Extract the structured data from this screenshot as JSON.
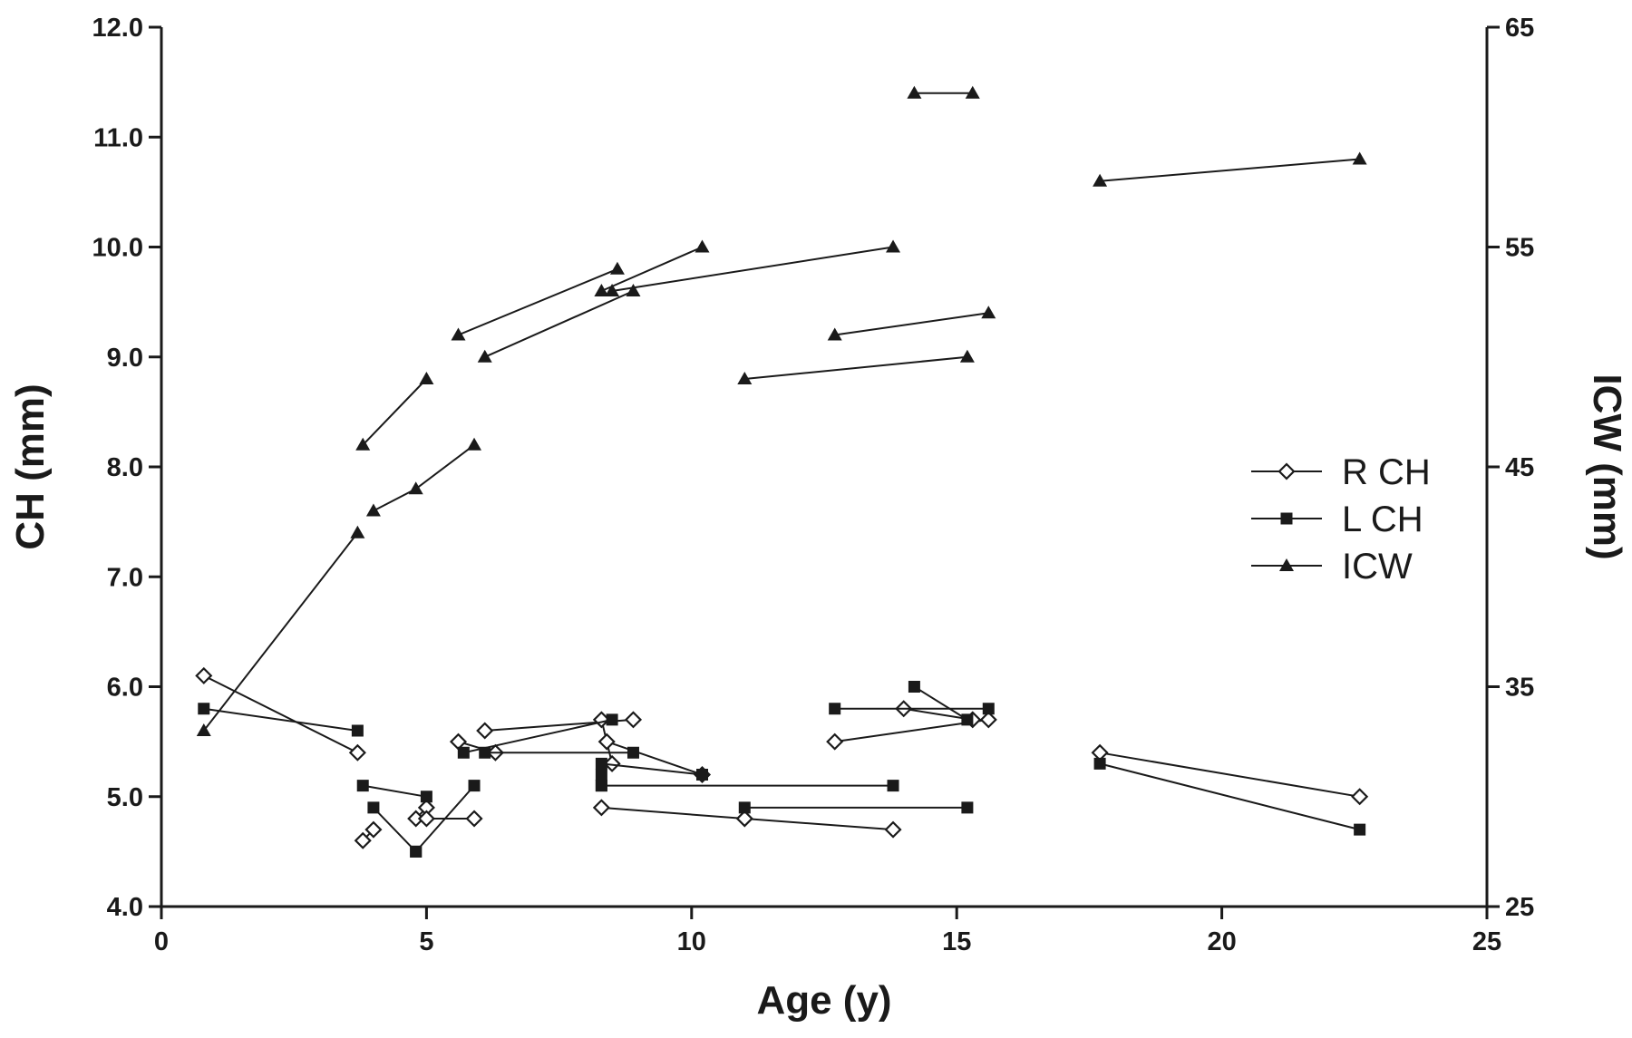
{
  "chart_data": {
    "type": "line",
    "title": "",
    "xlabel": "Age (y)",
    "ylabel": "CH (mm)",
    "y2label": "ICW (mm)",
    "xlim": [
      0,
      25
    ],
    "ylim": [
      4.0,
      12.0
    ],
    "y2lim": [
      25,
      65
    ],
    "xticks": [
      "0",
      "5",
      "10",
      "15",
      "20",
      "25"
    ],
    "yticks": [
      "4.0",
      "5.0",
      "6.0",
      "7.0",
      "8.0",
      "9.0",
      "10.0",
      "11.0",
      "12.0"
    ],
    "y2ticks": [
      "25",
      "35",
      "45",
      "55",
      "65"
    ],
    "grid": false,
    "legend_position": "right",
    "colors": {
      "line": "#1a1a1a",
      "background": "#ffffff"
    },
    "legend": [
      {
        "key": "rch",
        "label": "R CH",
        "marker": "open-diamond"
      },
      {
        "key": "lch",
        "label": "L CH",
        "marker": "filled-square"
      },
      {
        "key": "icw",
        "label": "ICW",
        "marker": "filled-triangle"
      }
    ],
    "series": [
      {
        "name": "R CH",
        "axis": "left",
        "marker": "open-diamond",
        "segments": [
          [
            [
              0.8,
              6.1
            ],
            [
              3.7,
              5.4
            ]
          ],
          [
            [
              3.8,
              4.6
            ],
            [
              4.0,
              4.7
            ]
          ],
          [
            [
              4.8,
              4.8
            ],
            [
              5.0,
              4.9
            ]
          ],
          [
            [
              5.0,
              4.8
            ],
            [
              5.9,
              4.8
            ]
          ],
          [
            [
              5.6,
              5.5
            ],
            [
              6.3,
              5.4
            ]
          ],
          [
            [
              6.1,
              5.6
            ],
            [
              8.9,
              5.7
            ]
          ],
          [
            [
              8.3,
              5.7
            ],
            [
              8.5,
              5.3
            ]
          ],
          [
            [
              8.4,
              5.5
            ],
            [
              10.2,
              5.2
            ]
          ],
          [
            [
              8.3,
              4.9
            ],
            [
              11.0,
              4.8
            ]
          ],
          [
            [
              11.0,
              4.8
            ],
            [
              13.8,
              4.7
            ]
          ],
          [
            [
              12.7,
              5.5
            ],
            [
              15.6,
              5.7
            ]
          ],
          [
            [
              14.0,
              5.8
            ],
            [
              15.3,
              5.7
            ]
          ],
          [
            [
              17.7,
              5.4
            ],
            [
              22.6,
              5.0
            ]
          ]
        ]
      },
      {
        "name": "L CH",
        "axis": "left",
        "marker": "filled-square",
        "segments": [
          [
            [
              0.8,
              5.8
            ],
            [
              3.7,
              5.6
            ]
          ],
          [
            [
              3.8,
              5.1
            ],
            [
              5.0,
              5.0
            ]
          ],
          [
            [
              4.0,
              4.9
            ],
            [
              4.8,
              4.5
            ]
          ],
          [
            [
              4.8,
              4.5
            ],
            [
              5.9,
              5.1
            ]
          ],
          [
            [
              5.7,
              5.4
            ],
            [
              8.5,
              5.7
            ]
          ],
          [
            [
              6.1,
              5.4
            ],
            [
              8.9,
              5.4
            ]
          ],
          [
            [
              8.3,
              5.3
            ],
            [
              10.2,
              5.2
            ]
          ],
          [
            [
              8.3,
              5.2
            ],
            [
              8.3,
              5.1
            ]
          ],
          [
            [
              8.3,
              5.1
            ],
            [
              13.8,
              5.1
            ]
          ],
          [
            [
              11.0,
              4.9
            ],
            [
              15.2,
              4.9
            ]
          ],
          [
            [
              12.7,
              5.8
            ],
            [
              15.6,
              5.8
            ]
          ],
          [
            [
              14.2,
              6.0
            ],
            [
              15.2,
              5.7
            ]
          ],
          [
            [
              17.7,
              5.3
            ],
            [
              22.6,
              4.7
            ]
          ]
        ]
      },
      {
        "name": "ICW",
        "axis": "right",
        "marker": "filled-triangle",
        "segments": [
          [
            [
              0.8,
              33
            ],
            [
              3.7,
              42
            ]
          ],
          [
            [
              3.8,
              46
            ],
            [
              5.0,
              49
            ]
          ],
          [
            [
              4.0,
              43
            ],
            [
              4.8,
              44
            ],
            [
              5.9,
              46
            ]
          ],
          [
            [
              5.6,
              51
            ],
            [
              8.6,
              54
            ]
          ],
          [
            [
              6.1,
              50
            ],
            [
              8.9,
              53
            ]
          ],
          [
            [
              8.3,
              53
            ],
            [
              10.2,
              55
            ]
          ],
          [
            [
              8.5,
              53
            ],
            [
              13.8,
              55
            ]
          ],
          [
            [
              11.0,
              49
            ],
            [
              15.2,
              50
            ]
          ],
          [
            [
              12.7,
              51
            ],
            [
              15.6,
              52
            ]
          ],
          [
            [
              14.2,
              62
            ],
            [
              15.3,
              62
            ]
          ],
          [
            [
              17.7,
              58
            ],
            [
              22.6,
              59
            ]
          ]
        ]
      }
    ]
  }
}
